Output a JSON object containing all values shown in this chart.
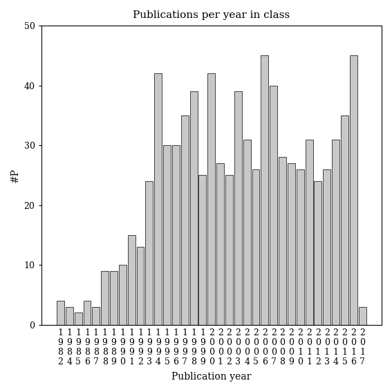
{
  "title": "Publications per year in class",
  "xlabel": "Publication year",
  "ylabel": "#P",
  "bar_color": "#c8c8c8",
  "bar_edgecolor": "#000000",
  "ylim": [
    0,
    50
  ],
  "yticks": [
    0,
    10,
    20,
    30,
    40,
    50
  ],
  "years": [
    1982,
    1984,
    1985,
    1986,
    1987,
    1988,
    1989,
    1990,
    1991,
    1992,
    1993,
    1994,
    1995,
    1996,
    1997,
    1998,
    1999,
    2000,
    2001,
    2002,
    2003,
    2004,
    2005,
    2006,
    2007,
    2008,
    2009,
    2010,
    2011,
    2012,
    2013,
    2014,
    2015,
    2016,
    2017
  ],
  "values": [
    4,
    3,
    2,
    4,
    3,
    9,
    9,
    10,
    15,
    13,
    24,
    42,
    30,
    30,
    35,
    39,
    25,
    42,
    27,
    25,
    39,
    31,
    26,
    45,
    40,
    28,
    27,
    26,
    31,
    24,
    26,
    31,
    35,
    45,
    3
  ],
  "tick_fontsize": 9,
  "title_fontsize": 11,
  "label_fontsize": 10,
  "figsize": [
    5.67,
    5.67
  ],
  "dpi": 100
}
